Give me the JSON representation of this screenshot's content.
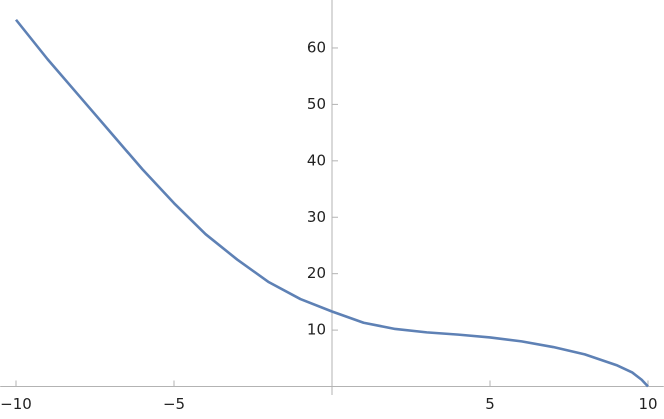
{
  "chart_data": {
    "type": "line",
    "x": [
      -10,
      -9,
      -8,
      -7,
      -6,
      -5,
      -4,
      -3,
      -2,
      -1,
      0,
      1,
      2,
      3,
      4,
      5,
      6,
      7,
      8,
      9,
      9.5,
      9.8,
      10
    ],
    "series": [
      {
        "color": "#5e81b5",
        "values": [
          65,
          58,
          51.5,
          45,
          38.5,
          32.5,
          27,
          22.5,
          18.5,
          15.5,
          13.3,
          11.3,
          10.2,
          9.6,
          9.2,
          8.7,
          8.0,
          7.0,
          5.7,
          3.8,
          2.5,
          1.2,
          0
        ]
      }
    ],
    "xlim": [
      -10.5,
      10.5
    ],
    "ylim": [
      -1.5,
      68.5
    ],
    "xticks": [
      {
        "value": -10,
        "label": "−10"
      },
      {
        "value": -5,
        "label": "−5"
      },
      5,
      10
    ],
    "yticks": [
      10,
      20,
      30,
      40,
      50,
      60
    ]
  }
}
